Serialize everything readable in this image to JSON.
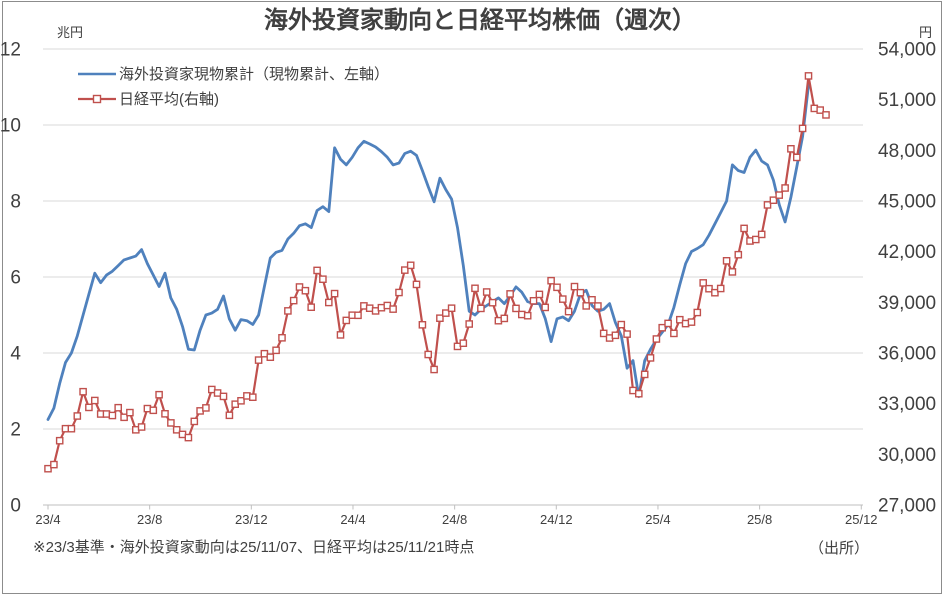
{
  "title": "海外投資家動向と日経平均株価（週次）",
  "footnote": "※23/3基準・海外投資家動向は25/11/07、日経平均は25/11/21時点",
  "source_label": "（出所）",
  "left_axis": {
    "unit": "兆円",
    "tick_labels": [
      "0",
      "2",
      "4",
      "6",
      "8",
      "10",
      "12"
    ],
    "min": 0,
    "max": 12
  },
  "right_axis": {
    "unit": "円",
    "tick_labels": [
      "27,000",
      "30,000",
      "33,000",
      "36,000",
      "39,000",
      "42,000",
      "45,000",
      "48,000",
      "51,000",
      "54,000"
    ],
    "min": 27000,
    "max": 54000
  },
  "x_axis": {
    "tick_labels": [
      "23/4",
      "23/8",
      "23/12",
      "24/4",
      "24/8",
      "24/12",
      "25/4",
      "25/8",
      "25/12"
    ]
  },
  "legend": [
    {
      "label": "海外投資家現物累計（現物累計、左軸）",
      "marker": "line"
    },
    {
      "label": "日経平均(右軸)",
      "marker": "line-square"
    }
  ],
  "colors": {
    "foreign_line": "#4F81BD",
    "nikkei_line": "#C0504D",
    "marker_fill": "#FFFFFF",
    "gridline": "#D9D9D9",
    "axis_line": "#BFBFBF",
    "text": "#404040",
    "frame_border": "#8C8C8C",
    "background": "#FFFFFF"
  },
  "chart_data": {
    "type": "line",
    "x_tick_labels": [
      "23/4",
      "23/8",
      "23/12",
      "24/4",
      "24/8",
      "24/12",
      "25/4",
      "25/8",
      "25/12"
    ],
    "left_ylim": [
      0,
      12
    ],
    "right_ylim": [
      27000,
      54000
    ],
    "grid": "horizontal",
    "legend_position": "top-left",
    "series": [
      {
        "name": "海外投資家現物累計（現物累計、左軸）",
        "axis": "left",
        "unit": "兆円",
        "marker": "none",
        "values": [
          2.25,
          2.55,
          3.2,
          3.75,
          4.0,
          4.45,
          5.0,
          5.55,
          6.1,
          5.85,
          6.05,
          6.15,
          6.3,
          6.45,
          6.5,
          6.55,
          6.72,
          6.35,
          6.05,
          5.75,
          6.1,
          5.45,
          5.15,
          4.7,
          4.1,
          4.08,
          4.6,
          5.0,
          5.05,
          5.15,
          5.5,
          4.9,
          4.6,
          4.88,
          4.85,
          4.75,
          5.0,
          5.75,
          6.5,
          6.65,
          6.7,
          7.0,
          7.15,
          7.35,
          7.4,
          7.3,
          7.75,
          7.85,
          7.72,
          9.4,
          9.1,
          8.95,
          9.15,
          9.4,
          9.57,
          9.5,
          9.42,
          9.3,
          9.15,
          8.95,
          9.0,
          9.25,
          9.31,
          9.2,
          8.8,
          8.37,
          7.98,
          8.6,
          8.3,
          8.05,
          7.3,
          6.3,
          5.1,
          5.0,
          5.15,
          5.25,
          5.35,
          5.45,
          5.3,
          5.5,
          5.74,
          5.6,
          5.35,
          5.3,
          5.3,
          4.9,
          4.3,
          4.9,
          4.95,
          4.85,
          5.1,
          5.55,
          5.65,
          5.25,
          5.1,
          5.15,
          5.3,
          4.8,
          4.45,
          3.6,
          3.8,
          2.85,
          3.8,
          4.1,
          4.35,
          4.55,
          4.75,
          5.2,
          5.8,
          6.35,
          6.67,
          6.75,
          6.85,
          7.1,
          7.4,
          7.7,
          8.0,
          8.95,
          8.8,
          8.75,
          9.15,
          9.34,
          9.05,
          8.95,
          8.55,
          7.9,
          7.45,
          8.1,
          8.9,
          9.7,
          11.05
        ]
      },
      {
        "name": "日経平均(右軸)",
        "axis": "right",
        "unit": "円",
        "marker": "square",
        "values": [
          29150,
          29390,
          30810,
          31520,
          31520,
          32270,
          33710,
          32780,
          33190,
          32390,
          32390,
          32300,
          32760,
          32190,
          32470,
          31450,
          31620,
          32710,
          32610,
          33530,
          32400,
          31860,
          31450,
          31180,
          30990,
          31950,
          32570,
          32750,
          33840,
          33630,
          33430,
          32310,
          32970,
          33170,
          33460,
          33380,
          35580,
          35960,
          35750,
          36160,
          36900,
          38490,
          39100,
          39910,
          39690,
          38710,
          40890,
          40370,
          38990,
          39520,
          37070,
          37930,
          38240,
          38230,
          38790,
          38650,
          38490,
          38680,
          38810,
          38600,
          39580,
          40910,
          41190,
          40060,
          37670,
          35910,
          35025,
          38060,
          38360,
          38650,
          36390,
          36580,
          37720,
          39830,
          38640,
          39610,
          38980,
          37910,
          38050,
          39500,
          38640,
          38280,
          38210,
          39090,
          39470,
          38700,
          40280,
          39890,
          39190,
          38450,
          39930,
          39570,
          38790,
          39150,
          38780,
          37160,
          36890,
          37050,
          37680,
          37120,
          33780,
          33590,
          34730,
          35710,
          36830,
          37500,
          37750,
          37160,
          37970,
          37740,
          37830,
          38400,
          40150,
          39810,
          39570,
          39820,
          41460,
          40800,
          41820,
          43380,
          42630,
          42720,
          43020,
          44770,
          45050,
          45350,
          45770,
          48090,
          47580,
          49300,
          52410,
          50480,
          50380,
          50100
        ]
      }
    ]
  }
}
